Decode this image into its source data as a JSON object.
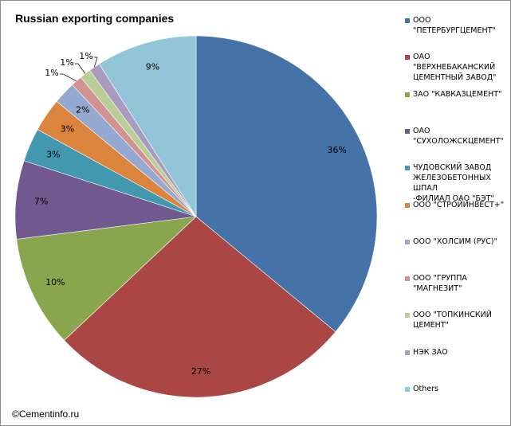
{
  "chart_data": {
    "type": "pie",
    "title": "Russian exporting companies",
    "slices": [
      {
        "label": "ООО \"ПЕТЕРБУРГЦЕМЕНТ\"",
        "value": 36,
        "value_label": "36%",
        "color": "#4572a7"
      },
      {
        "label": "ОАО \"ВЕРХНЕБАКАНСКИЙ ЦЕМЕНТНЫЙ ЗАВОД\"",
        "value": 27,
        "value_label": "27%",
        "color": "#aa4643"
      },
      {
        "label": "ЗАО \"КАВКАЗЦЕМЕНТ\"",
        "value": 10,
        "value_label": "10%",
        "color": "#89a54e"
      },
      {
        "label": "ОАО \"СУХОЛОЖСКЦЕМЕНТ\"",
        "value": 7,
        "value_label": "7%",
        "color": "#71588f"
      },
      {
        "label": "ЧУДОВСКИЙ ЗАВОД ЖЕЛЕЗОБЕТОННЫХ ШПАЛ -ФИЛИАЛ ОАО \"БЭТ\"",
        "value": 3,
        "value_label": "3%",
        "color": "#4198af"
      },
      {
        "label": "ООО \"СТРОЙИНВЕСТ+\"",
        "value": 3,
        "value_label": "3%",
        "color": "#db843d"
      },
      {
        "label": "ООО \"ХОЛСИМ (РУС)\"",
        "value": 2,
        "value_label": "2%",
        "color": "#93a9cf"
      },
      {
        "label": "ООО \"ГРУППА \"МАГНЕЗИТ\"",
        "value": 1,
        "value_label": "1%",
        "color": "#d19392"
      },
      {
        "label": "ООО \"ТОПКИНСКИЙ ЦЕМЕНТ\"",
        "value": 1,
        "value_label": "1%",
        "color": "#b9cd96"
      },
      {
        "label": "НЭК ЗАО",
        "value": 1,
        "value_label": "1%",
        "color": "#a99bbd"
      },
      {
        "label": "Others",
        "value": 9,
        "value_label": "9%",
        "color": "#92c5d8"
      }
    ],
    "legend": {
      "placement": "right",
      "entries": [
        "ООО \"ПЕТЕРБУРГЦЕМЕНТ\"",
        "ОАО \"ВЕРХНЕБАКАНСКИЙ\nЦЕМЕНТНЫЙ ЗАВОД\"",
        "ЗАО \"КАВКАЗЦЕМЕНТ\"",
        "ОАО\n\"СУХОЛОЖСКЦЕМЕНТ\"",
        "ЧУДОВСКИЙ ЗАВОД\nЖЕЛЕЗОБЕТОННЫХ ШПАЛ\n-ФИЛИАЛ ОАО \"БЭТ\"",
        "ООО \"СТРОЙИНВЕСТ+\"",
        "ООО \"ХОЛСИМ (РУС)\"",
        "ООО \"ГРУППА\n\"МАГНЕЗИТ\"",
        "ООО \"ТОПКИНСКИЙ\nЦЕМЕНТ\"",
        "НЭК ЗАО",
        "Others"
      ]
    }
  },
  "footer": {
    "credit": "©Cementinfo.ru"
  }
}
